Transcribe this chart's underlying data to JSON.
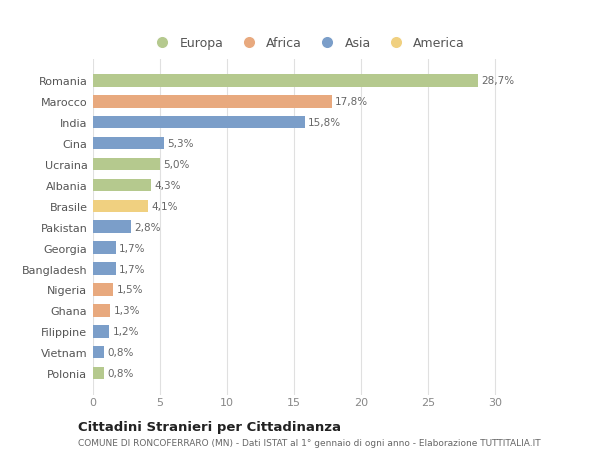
{
  "countries": [
    "Romania",
    "Marocco",
    "India",
    "Cina",
    "Ucraina",
    "Albania",
    "Brasile",
    "Pakistan",
    "Georgia",
    "Bangladesh",
    "Nigeria",
    "Ghana",
    "Filippine",
    "Vietnam",
    "Polonia"
  ],
  "values": [
    28.7,
    17.8,
    15.8,
    5.3,
    5.0,
    4.3,
    4.1,
    2.8,
    1.7,
    1.7,
    1.5,
    1.3,
    1.2,
    0.8,
    0.8
  ],
  "labels": [
    "28,7%",
    "17,8%",
    "15,8%",
    "5,3%",
    "5,0%",
    "4,3%",
    "4,1%",
    "2,8%",
    "1,7%",
    "1,7%",
    "1,5%",
    "1,3%",
    "1,2%",
    "0,8%",
    "0,8%"
  ],
  "colors": [
    "#b5c98e",
    "#e8a97e",
    "#7b9ec9",
    "#7b9ec9",
    "#b5c98e",
    "#b5c98e",
    "#f0d080",
    "#7b9ec9",
    "#7b9ec9",
    "#7b9ec9",
    "#e8a97e",
    "#e8a97e",
    "#7b9ec9",
    "#7b9ec9",
    "#b5c98e"
  ],
  "regions": [
    "Europa",
    "Africa",
    "Asia",
    "America"
  ],
  "legend_colors": [
    "#b5c98e",
    "#e8a97e",
    "#7b9ec9",
    "#f0d080"
  ],
  "title": "Cittadini Stranieri per Cittadinanza",
  "subtitle": "COMUNE DI RONCOFERRARO (MN) - Dati ISTAT al 1° gennaio di ogni anno - Elaborazione TUTTITALIA.IT",
  "xlim": [
    0,
    32
  ],
  "xticks": [
    0,
    5,
    10,
    15,
    20,
    25,
    30
  ],
  "background_color": "#ffffff",
  "grid_color": "#e0e0e0"
}
